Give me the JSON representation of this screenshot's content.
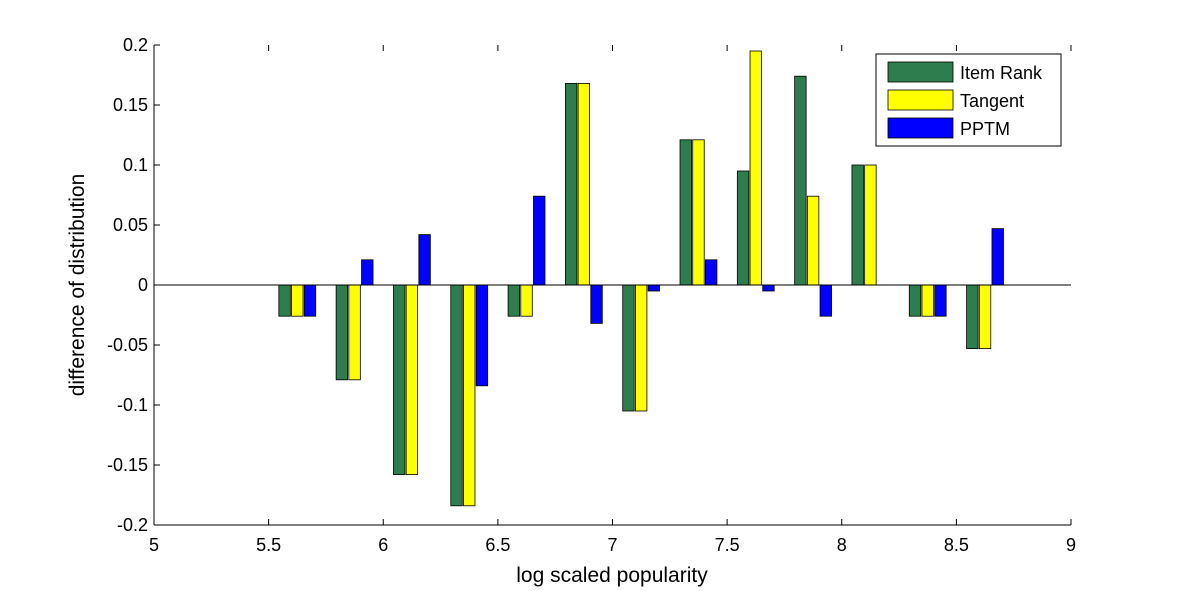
{
  "chart_data": {
    "type": "bar",
    "title": "",
    "xlabel": "log scaled popularity",
    "ylabel": "difference of distribution",
    "xlim": [
      5,
      9
    ],
    "ylim": [
      -0.2,
      0.2
    ],
    "xticks": [
      "5",
      "5.5",
      "6",
      "6.5",
      "7",
      "7.5",
      "8",
      "8.5",
      "9"
    ],
    "xtick_values": [
      5,
      5.5,
      6,
      6.5,
      7,
      7.5,
      8,
      8.5,
      9
    ],
    "yticks": [
      "-0.2",
      "-0.15",
      "-0.1",
      "-0.05",
      "0",
      "0.05",
      "0.1",
      "0.15",
      "0.2"
    ],
    "ytick_values": [
      -0.2,
      -0.15,
      -0.1,
      -0.05,
      0,
      0.05,
      0.1,
      0.15,
      0.2
    ],
    "grid": false,
    "legend_position": "top-right",
    "x": [
      5.625,
      5.875,
      6.125,
      6.375,
      6.625,
      6.875,
      7.125,
      7.375,
      7.625,
      7.875,
      8.125,
      8.375,
      8.625
    ],
    "series": [
      {
        "name": "Item Rank",
        "color": "#2e7d4f",
        "values": [
          -0.026,
          -0.079,
          -0.158,
          -0.184,
          -0.026,
          0.168,
          -0.105,
          0.121,
          0.095,
          0.174,
          0.1,
          -0.026,
          -0.053
        ]
      },
      {
        "name": "Tangent",
        "color": "#ffff00",
        "values": [
          -0.026,
          -0.079,
          -0.158,
          -0.184,
          -0.026,
          0.168,
          -0.105,
          0.121,
          0.195,
          0.074,
          0.1,
          -0.026,
          -0.053
        ]
      },
      {
        "name": "PPTM",
        "color": "#0000ff",
        "values": [
          -0.026,
          0.021,
          0.042,
          -0.084,
          0.074,
          -0.032,
          -0.005,
          0.021,
          -0.005,
          -0.026,
          0,
          -0.026,
          0.047
        ]
      }
    ]
  }
}
